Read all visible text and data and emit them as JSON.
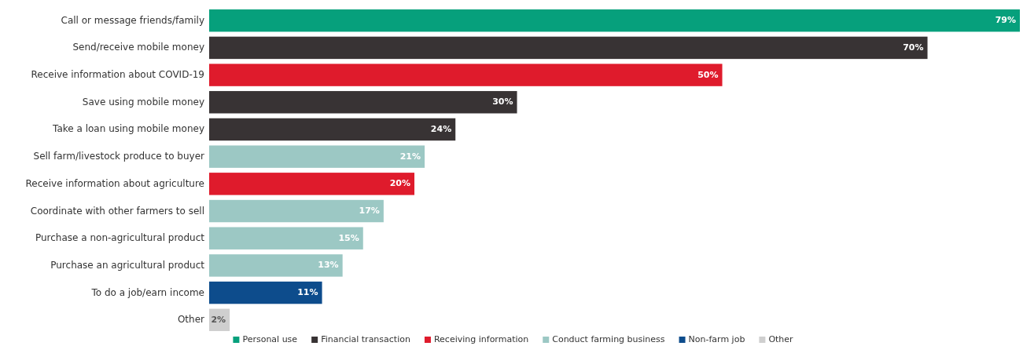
{
  "chart_data": {
    "type": "bar",
    "orientation": "horizontal",
    "legend": "bottom",
    "categories": [
      "Call or message friends/family",
      "Send/receive mobile money",
      "Receive information about COVID-19",
      "Save using mobile money",
      "Take a loan using mobile money",
      "Sell farm/livestock produce to buyer",
      "Receive information about agriculture",
      "Coordinate with other farmers to sell",
      "Purchase a non-agricultural product",
      "Purchase an agricultural product",
      "To do a job/earn income",
      "Other"
    ],
    "series": [
      {
        "name": "Personal use",
        "color": "#06a07c",
        "values": [
          79,
          null,
          null,
          null,
          null,
          null,
          null,
          null,
          null,
          null,
          null,
          null
        ],
        "value_labels": [
          "79%",
          null,
          null,
          null,
          null,
          null,
          null,
          null,
          null,
          null,
          null,
          null
        ]
      },
      {
        "name": "Financial transaction",
        "color": "#383334",
        "values": [
          null,
          70,
          null,
          30,
          24,
          null,
          null,
          null,
          null,
          null,
          null,
          null
        ],
        "value_labels": [
          null,
          "70%",
          null,
          "30%",
          "24%",
          null,
          null,
          null,
          null,
          null,
          null,
          null
        ]
      },
      {
        "name": "Receiving information",
        "color": "#df1b2c",
        "values": [
          null,
          null,
          50,
          null,
          null,
          null,
          20,
          null,
          null,
          null,
          null,
          null
        ],
        "value_labels": [
          null,
          null,
          "50%",
          null,
          null,
          null,
          "20%",
          null,
          null,
          null,
          null,
          null
        ]
      },
      {
        "name": "Conduct farming business",
        "color": "#9cc8c4",
        "values": [
          null,
          null,
          null,
          null,
          null,
          21,
          null,
          17,
          15,
          13,
          null,
          null
        ],
        "value_labels": [
          null,
          null,
          null,
          null,
          null,
          "21%",
          null,
          "17%",
          "15%",
          "13%",
          null,
          null
        ]
      },
      {
        "name": "Non-farm job",
        "color": "#0d4c8c",
        "values": [
          null,
          null,
          null,
          null,
          null,
          null,
          null,
          null,
          null,
          null,
          11,
          null
        ],
        "value_labels": [
          null,
          null,
          null,
          null,
          null,
          null,
          null,
          null,
          null,
          null,
          "11%",
          null
        ]
      },
      {
        "name": "Other",
        "color": "#cfcfcf",
        "values": [
          null,
          null,
          null,
          null,
          null,
          null,
          null,
          null,
          null,
          null,
          null,
          2
        ],
        "value_labels": [
          null,
          null,
          null,
          null,
          null,
          null,
          null,
          null,
          null,
          null,
          null,
          "2%"
        ]
      }
    ]
  }
}
